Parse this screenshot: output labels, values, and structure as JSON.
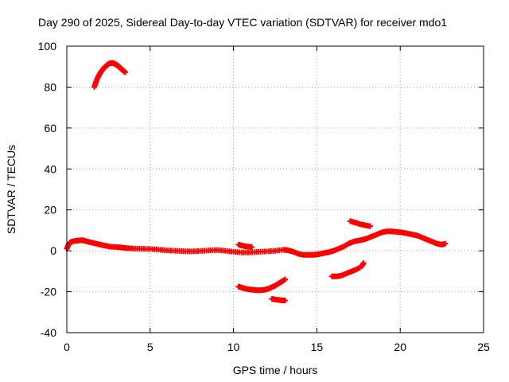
{
  "chart_data": {
    "type": "scatter",
    "title": "Day 290 of 2025, Sidereal Day-to-day VTEC variation (SDTVAR) for receiver mdo1",
    "xlabel": "GPS time / hours",
    "ylabel": "SDTVAR / TECUs",
    "xlim": [
      0,
      25
    ],
    "ylim": [
      -40,
      100
    ],
    "xticks": [
      0,
      5,
      10,
      15,
      20,
      25
    ],
    "yticks": [
      -40,
      -20,
      0,
      20,
      40,
      60,
      80,
      100
    ],
    "grid": true,
    "marker": "plus",
    "color": "#ff0000",
    "series": [
      {
        "name": "main",
        "x": [
          0.0,
          0.1,
          0.2,
          0.3,
          0.5,
          0.7,
          0.9,
          1.0,
          1.2,
          1.5,
          1.8,
          2.0,
          2.3,
          2.6,
          3.0,
          3.3,
          3.6,
          4.0,
          4.5,
          5.0,
          5.5,
          6.0,
          6.5,
          7.0,
          7.5,
          8.0,
          8.5,
          9.0,
          9.5,
          10.0,
          10.5,
          11.0,
          11.5,
          12.0,
          12.5,
          13.0,
          13.3,
          13.6,
          13.9,
          14.2,
          14.5,
          14.8,
          15.0,
          15.2,
          15.5,
          15.8,
          16.0,
          16.3,
          16.6,
          16.9,
          17.2,
          17.5,
          17.8,
          18.0,
          18.3,
          18.6,
          18.9,
          19.2,
          19.5,
          19.8,
          20.1,
          20.4,
          20.7,
          21.0,
          21.3,
          21.6,
          21.9,
          22.2,
          22.5,
          22.7
        ],
        "y": [
          1.0,
          3.0,
          4.0,
          4.5,
          4.8,
          5.0,
          5.2,
          5.0,
          4.6,
          4.0,
          3.4,
          3.0,
          2.5,
          2.0,
          1.8,
          1.6,
          1.3,
          1.1,
          1.0,
          0.9,
          0.6,
          0.2,
          0.0,
          -0.2,
          -0.3,
          -0.1,
          0.2,
          0.4,
          0.0,
          -0.5,
          -0.8,
          -0.8,
          -0.5,
          -0.3,
          0.0,
          0.5,
          0.2,
          -0.5,
          -1.5,
          -2.0,
          -2.0,
          -2.0,
          -1.8,
          -1.5,
          -1.0,
          -0.5,
          0.0,
          1.0,
          2.0,
          3.5,
          4.5,
          5.0,
          5.5,
          6.0,
          7.0,
          8.0,
          9.0,
          9.5,
          9.5,
          9.2,
          9.0,
          8.5,
          8.0,
          7.5,
          6.5,
          5.5,
          4.5,
          3.5,
          3.0,
          3.5
        ]
      },
      {
        "name": "spike",
        "x": [
          1.65,
          1.75,
          1.85,
          1.95,
          2.05,
          2.15,
          2.25,
          2.35,
          2.45,
          2.55,
          2.65,
          2.75,
          2.85,
          2.95,
          3.05,
          3.15,
          3.25,
          3.35,
          3.45,
          3.5
        ],
        "y": [
          80.0,
          82.5,
          84.5,
          86.0,
          87.5,
          88.5,
          89.5,
          90.3,
          91.0,
          91.5,
          91.8,
          91.8,
          91.5,
          91.0,
          90.5,
          89.8,
          89.0,
          88.3,
          87.6,
          87.2
        ]
      },
      {
        "name": "upper-segment-10",
        "x": [
          10.3,
          10.5,
          10.7,
          10.9,
          11.1
        ],
        "y": [
          3.0,
          2.6,
          2.2,
          2.0,
          1.8
        ]
      },
      {
        "name": "upper-segment-17",
        "x": [
          17.0,
          17.3,
          17.6,
          17.9,
          18.2
        ],
        "y": [
          14.5,
          13.8,
          13.0,
          12.5,
          12.0
        ]
      },
      {
        "name": "dip",
        "x": [
          10.3,
          10.5,
          10.7,
          10.9,
          11.1,
          11.3,
          11.5,
          11.7,
          11.9,
          12.1,
          12.3,
          12.5,
          12.7,
          12.9,
          13.1
        ],
        "y": [
          -17.5,
          -18.0,
          -18.5,
          -18.8,
          -19.0,
          -19.2,
          -19.3,
          -19.2,
          -19.0,
          -18.5,
          -17.8,
          -17.0,
          -16.0,
          -15.0,
          -14.0
        ]
      },
      {
        "name": "low-segment-13",
        "x": [
          12.3,
          12.5,
          12.7,
          12.9,
          13.1
        ],
        "y": [
          -23.5,
          -23.8,
          -24.0,
          -24.2,
          -24.3
        ]
      },
      {
        "name": "negative-16-18",
        "x": [
          15.9,
          16.2,
          16.5,
          16.8,
          17.1,
          17.4,
          17.7,
          17.8
        ],
        "y": [
          -12.5,
          -12.5,
          -12.0,
          -11.0,
          -10.0,
          -9.0,
          -7.5,
          -6.0
        ]
      }
    ]
  }
}
